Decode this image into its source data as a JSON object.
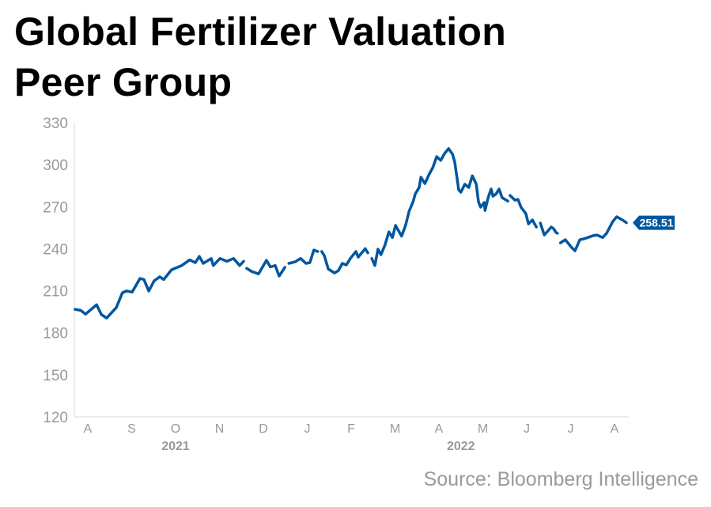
{
  "title_lines": [
    "Global Fertilizer Valuation",
    "Peer Group"
  ],
  "source": "Source: Bloomberg Intelligence",
  "colors": {
    "line": "#0057a0",
    "axis_text": "#999999",
    "axis_line": "#d9d9d9"
  },
  "chart_data": {
    "type": "line",
    "title": "Global Fertilizer Valuation Peer Group",
    "xlabel": "",
    "ylabel": "",
    "ylim": [
      120,
      330
    ],
    "yticks": [
      120,
      150,
      180,
      210,
      240,
      270,
      300,
      330
    ],
    "x_unit": "months since Aug 2021 tick",
    "xticks": [
      {
        "t": 0,
        "label": "A"
      },
      {
        "t": 1,
        "label": "S"
      },
      {
        "t": 2,
        "label": "O"
      },
      {
        "t": 3,
        "label": "N"
      },
      {
        "t": 4,
        "label": "D"
      },
      {
        "t": 5,
        "label": "J"
      },
      {
        "t": 6,
        "label": "F"
      },
      {
        "t": 7,
        "label": "M"
      },
      {
        "t": 8,
        "label": "A"
      },
      {
        "t": 9,
        "label": "M"
      },
      {
        "t": 10,
        "label": "J"
      },
      {
        "t": 11,
        "label": "J"
      },
      {
        "t": 12,
        "label": "A"
      }
    ],
    "year_labels": [
      {
        "t": 2,
        "label": "2021"
      },
      {
        "t": 8.5,
        "label": "2022"
      }
    ],
    "last_value_label": "258.51",
    "series": [
      {
        "name": "Global Fertilizer Valuation Peer Group",
        "segments": [
          [
            [
              -0.29,
              196.7
            ],
            [
              -0.16,
              196
            ],
            [
              -0.05,
              193.3
            ],
            [
              0.2,
              200
            ],
            [
              0.31,
              193
            ],
            [
              0.43,
              190.5
            ],
            [
              0.65,
              198
            ],
            [
              0.79,
              208.6
            ],
            [
              0.88,
              209.8
            ],
            [
              1.01,
              209
            ],
            [
              1.19,
              218.8
            ],
            [
              1.28,
              218
            ],
            [
              1.39,
              209.8
            ],
            [
              1.51,
              217
            ],
            [
              1.64,
              220
            ],
            [
              1.73,
              218
            ],
            [
              1.91,
              225
            ],
            [
              2.14,
              228
            ],
            [
              2.32,
              232
            ],
            [
              2.45,
              230
            ],
            [
              2.54,
              234.5
            ],
            [
              2.63,
              229.5
            ],
            [
              2.81,
              233
            ],
            [
              2.86,
              228
            ],
            [
              3.01,
              233
            ],
            [
              3.17,
              231
            ],
            [
              3.32,
              233
            ],
            [
              3.46,
              228
            ],
            [
              3.55,
              231
            ]
          ],
          [
            [
              3.62,
              226
            ],
            [
              3.73,
              223.8
            ],
            [
              3.89,
              222
            ],
            [
              4.07,
              231.7
            ],
            [
              4.16,
              227
            ],
            [
              4.27,
              228
            ],
            [
              4.36,
              220.5
            ],
            [
              4.49,
              226.7
            ]
          ],
          [
            [
              4.58,
              229.5
            ],
            [
              4.72,
              230.6
            ],
            [
              4.85,
              233
            ],
            [
              4.97,
              229.5
            ],
            [
              5.06,
              230
            ],
            [
              5.15,
              239
            ],
            [
              5.24,
              238
            ]
          ],
          [
            [
              5.33,
              238
            ],
            [
              5.39,
              235
            ],
            [
              5.48,
              225.5
            ],
            [
              5.62,
              222.7
            ],
            [
              5.71,
              224.4
            ],
            [
              5.8,
              229.5
            ],
            [
              5.89,
              228.4
            ],
            [
              5.98,
              233
            ],
            [
              6.11,
              238
            ],
            [
              6.16,
              234
            ],
            [
              6.32,
              240
            ],
            [
              6.38,
              237
            ]
          ],
          [
            [
              6.47,
              233
            ],
            [
              6.54,
              228
            ],
            [
              6.61,
              239.7
            ],
            [
              6.68,
              235.7
            ],
            [
              6.77,
              242.5
            ],
            [
              6.86,
              252
            ],
            [
              6.94,
              248
            ],
            [
              7.01,
              256.6
            ],
            [
              7.15,
              249
            ],
            [
              7.24,
              256.6
            ],
            [
              7.32,
              266.8
            ],
            [
              7.41,
              273.5
            ],
            [
              7.46,
              279
            ],
            [
              7.55,
              283.7
            ],
            [
              7.59,
              291
            ],
            [
              7.68,
              286.5
            ],
            [
              7.78,
              293.3
            ],
            [
              7.86,
              297.8
            ],
            [
              7.95,
              305.7
            ],
            [
              8.04,
              303
            ],
            [
              8.13,
              308
            ],
            [
              8.22,
              311.4
            ],
            [
              8.31,
              307.4
            ],
            [
              8.36,
              301.8
            ],
            [
              8.45,
              282
            ],
            [
              8.5,
              280.3
            ],
            [
              8.59,
              286
            ],
            [
              8.68,
              283.7
            ],
            [
              8.76,
              292
            ],
            [
              8.85,
              286
            ],
            [
              8.9,
              273.5
            ],
            [
              8.95,
              269.6
            ],
            [
              9.03,
              273
            ],
            [
              9.05,
              267.3
            ],
            [
              9.12,
              276.4
            ],
            [
              9.19,
              282.6
            ],
            [
              9.23,
              277.5
            ],
            [
              9.3,
              279
            ],
            [
              9.37,
              282.6
            ],
            [
              9.44,
              276.4
            ],
            [
              9.57,
              274
            ]
          ],
          [
            [
              9.62,
              278
            ],
            [
              9.73,
              274.7
            ],
            [
              9.8,
              275.2
            ],
            [
              9.87,
              269.6
            ],
            [
              9.98,
              265
            ],
            [
              10.04,
              257.7
            ],
            [
              10.13,
              260.5
            ],
            [
              10.22,
              255.5
            ]
          ],
          [
            [
              10.31,
              258.3
            ],
            [
              10.4,
              249.8
            ],
            [
              10.56,
              255.5
            ],
            [
              10.61,
              254.3
            ],
            [
              10.67,
              251.5
            ],
            [
              10.7,
              251
            ]
          ],
          [
            [
              10.77,
              244.2
            ],
            [
              10.88,
              246.4
            ],
            [
              11.01,
              241.3
            ],
            [
              11.1,
              238.5
            ],
            [
              11.21,
              246.4
            ],
            [
              11.3,
              247
            ],
            [
              11.39,
              248
            ],
            [
              11.51,
              249.3
            ],
            [
              11.6,
              249.8
            ],
            [
              11.73,
              248
            ],
            [
              11.82,
              251
            ],
            [
              11.96,
              259.4
            ],
            [
              12.05,
              262.8
            ],
            [
              12.18,
              260.5
            ],
            [
              12.27,
              258.51
            ]
          ]
        ]
      }
    ]
  }
}
